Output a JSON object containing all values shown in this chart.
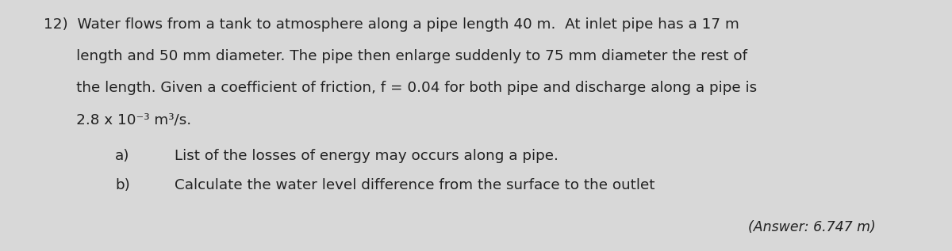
{
  "background_color": "#d8d8d8",
  "text_color": "#222222",
  "line1": "12)  Water flows from a tank to atmosphere along a pipe length 40 m.  At inlet pipe has a 17 m",
  "line2": "       length and 50 mm diameter. The pipe then enlarge suddenly to 75 mm diameter the rest of",
  "line3": "       the length. Given a coefficient of friction, f = 0.04 for both pipe and discharge along a pipe is",
  "line4": "       2.8 x 10⁻³ m³/s.",
  "line5a_label": "a)",
  "line5a_text": "List of the losses of energy may occurs along a pipe.",
  "line5b_label": "b)",
  "line5b_text": "Calculate the water level difference from the surface to the outlet",
  "answer": "(Answer: 6.747 m)",
  "fontsize_main": 13.2,
  "fontsize_answer": 12.5
}
